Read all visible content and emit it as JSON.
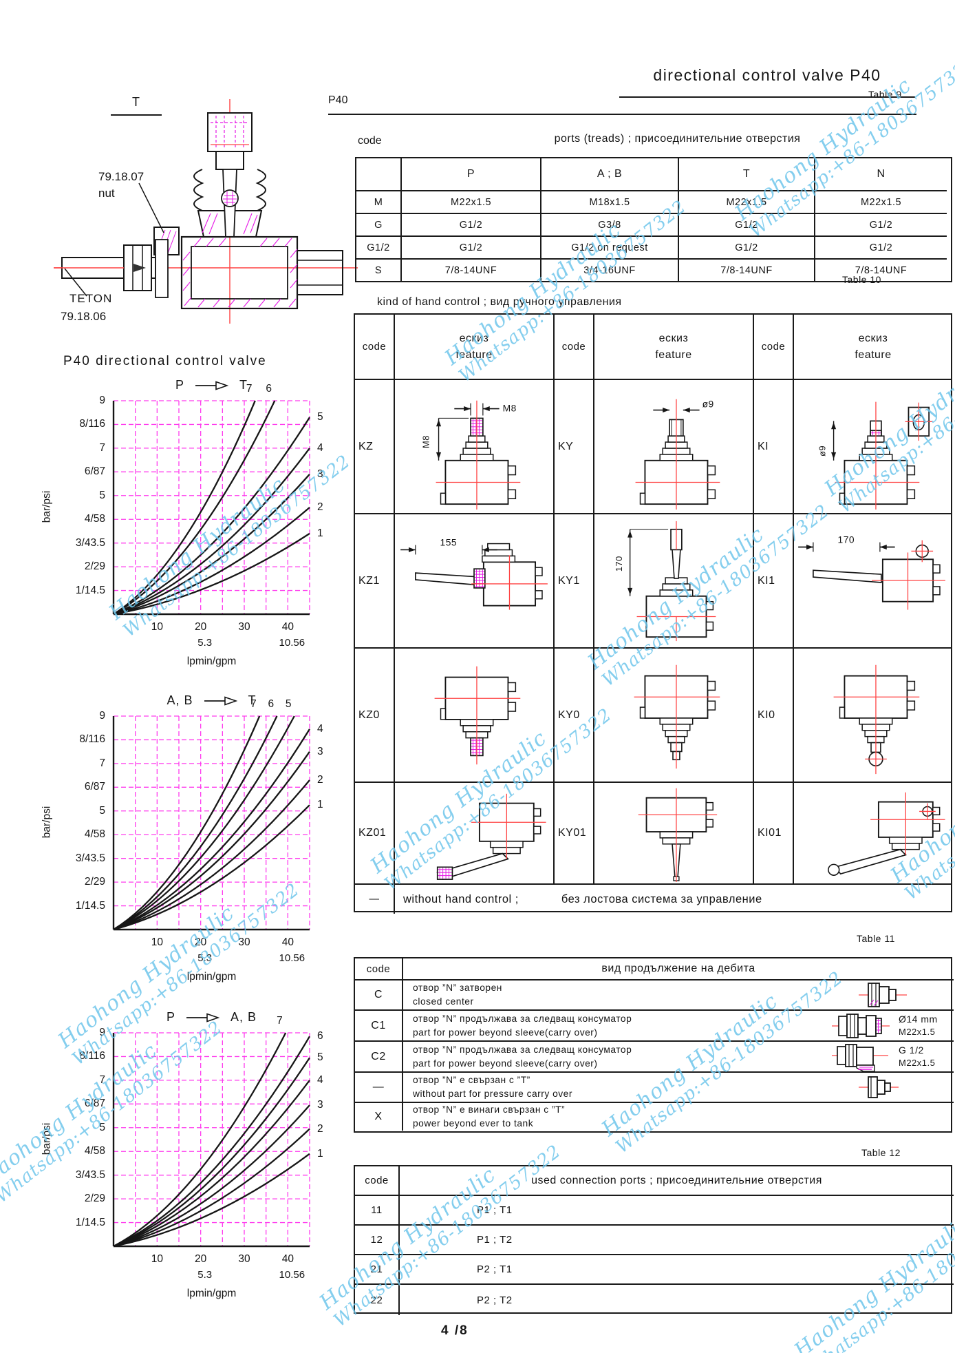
{
  "page": {
    "title": "directional control valve P40",
    "model": "P40",
    "number": "4 /8"
  },
  "watermark": {
    "line1": "Haohong Hydraulic",
    "line2": "Whatsapp:+86-18036757322"
  },
  "drawing": {
    "t_label": "T",
    "part1_line1": "79.18.07",
    "part1_line2": "nut",
    "part2_line1": "TETON",
    "part2_line2": "79.18.06"
  },
  "table9": {
    "label": "Table 9",
    "code_header": "code",
    "title": "ports (treads) ;  присоединительние отверстия",
    "columns": [
      "P",
      "A ; B",
      "T",
      "N"
    ],
    "rows": [
      {
        "code": "M",
        "values": [
          "M22x1.5",
          "M18x1.5",
          "M22x1.5",
          "M22x1.5"
        ]
      },
      {
        "code": "G",
        "values": [
          "G1/2",
          "G3/8",
          "G1/2",
          "G1/2"
        ]
      },
      {
        "code": "G1/2",
        "values": [
          "G1/2",
          "G1/2 on request",
          "G1/2",
          "G1/2"
        ]
      },
      {
        "code": "S",
        "values": [
          "7/8-14UNF",
          "3/4-16UNF",
          "7/8-14UNF",
          "7/8-14UNF"
        ]
      }
    ]
  },
  "table10": {
    "label": "Table 10",
    "title": "kind of hand control ;  вид ручного  управления",
    "code_header": "code",
    "feature_header": [
      "ескиз",
      "feature"
    ],
    "rows": [
      [
        {
          "code": "KZ",
          "sketch": "kz",
          "dims": [
            "M8",
            "M8"
          ]
        },
        {
          "code": "KY",
          "sketch": "ky",
          "dims": [
            "ø9"
          ]
        },
        {
          "code": "KI",
          "sketch": "ki",
          "dims": [
            "ø9"
          ]
        }
      ],
      [
        {
          "code": "KZ1",
          "sketch": "kz1",
          "dims": [
            "155"
          ]
        },
        {
          "code": "KY1",
          "sketch": "ky1",
          "dims": [
            "170"
          ]
        },
        {
          "code": "KI1",
          "sketch": "ki1",
          "dims": [
            "170"
          ]
        }
      ],
      [
        {
          "code": "KZ0",
          "sketch": "kz0",
          "dims": []
        },
        {
          "code": "KY0",
          "sketch": "ky0",
          "dims": []
        },
        {
          "code": "KI0",
          "sketch": "ki0",
          "dims": []
        }
      ],
      [
        {
          "code": "KZ01",
          "sketch": "kz01",
          "dims": []
        },
        {
          "code": "KY01",
          "sketch": "ky01",
          "dims": []
        },
        {
          "code": "KI01",
          "sketch": "ki01",
          "dims": []
        }
      ]
    ],
    "footer": {
      "code": "—",
      "text_en": "without hand control ;",
      "text_bg": "без лостова система за управление"
    }
  },
  "chart_data": [
    {
      "type": "line",
      "title": "P40 directional control valve",
      "flow_from": "P",
      "flow_to": "T",
      "ylabel": "bar/psi",
      "xlabel": "lpmin/gpm",
      "y_ticks": [
        "9",
        "8/116",
        "7",
        "6/87",
        "5",
        "4/58",
        "3/43.5",
        "2/29",
        "1/14.5"
      ],
      "x_ticks": [
        "10",
        "20",
        "30",
        "40"
      ],
      "x_gpm": {
        "20": "5.3",
        "40": "10.56"
      },
      "x_range_lpmin": [
        0,
        45
      ],
      "y_range_bar": [
        0,
        9
      ],
      "grid": true,
      "series": [
        {
          "name": "7",
          "end_lpmin": 32.5,
          "end_bar": 9
        },
        {
          "name": "6",
          "end_lpmin": 37.0,
          "end_bar": 9
        },
        {
          "name": "5",
          "end_lpmin": 45,
          "end_bar": 8.3
        },
        {
          "name": "4",
          "end_lpmin": 45,
          "end_bar": 7.0
        },
        {
          "name": "3",
          "end_lpmin": 45,
          "end_bar": 5.9
        },
        {
          "name": "2",
          "end_lpmin": 45,
          "end_bar": 4.5
        },
        {
          "name": "1",
          "end_lpmin": 45,
          "end_bar": 3.4
        }
      ]
    },
    {
      "type": "line",
      "title": "",
      "flow_from": "A, B",
      "flow_to": "T",
      "ylabel": "bar/psi",
      "xlabel": "lpmin/gpm",
      "y_ticks": [
        "9",
        "8/116",
        "7",
        "6/87",
        "5",
        "4/58",
        "3/43.5",
        "2/29",
        "1/14.5"
      ],
      "x_ticks": [
        "10",
        "20",
        "30",
        "40"
      ],
      "x_gpm": {
        "20": "5.3",
        "40": "10.56"
      },
      "x_range_lpmin": [
        0,
        45
      ],
      "y_range_bar": [
        0,
        9
      ],
      "grid": true,
      "series": [
        {
          "name": "7",
          "end_lpmin": 33.5,
          "end_bar": 9
        },
        {
          "name": "6",
          "end_lpmin": 37.5,
          "end_bar": 9
        },
        {
          "name": "5",
          "end_lpmin": 41.5,
          "end_bar": 9
        },
        {
          "name": "4",
          "end_lpmin": 45,
          "end_bar": 8.45
        },
        {
          "name": "3",
          "end_lpmin": 45,
          "end_bar": 7.5
        },
        {
          "name": "2",
          "end_lpmin": 45,
          "end_bar": 6.3
        },
        {
          "name": "1",
          "end_lpmin": 45,
          "end_bar": 5.25
        }
      ]
    },
    {
      "type": "line",
      "title": "",
      "flow_from": "P",
      "flow_to": "A, B",
      "ylabel": "bar/psi",
      "xlabel": "lpmin/gpm",
      "y_ticks": [
        "9",
        "8/116",
        "7",
        "6/87",
        "5",
        "4/58",
        "3/43.5",
        "2/29",
        "1/14.5"
      ],
      "x_ticks": [
        "10",
        "20",
        "30",
        "40"
      ],
      "x_gpm": {
        "20": "5.3",
        "40": "10.56"
      },
      "x_range_lpmin": [
        0,
        45
      ],
      "y_range_bar": [
        0,
        9
      ],
      "grid": true,
      "series": [
        {
          "name": "7",
          "end_lpmin": 39.5,
          "end_bar": 9
        },
        {
          "name": "6",
          "end_lpmin": 45,
          "end_bar": 8.85
        },
        {
          "name": "5",
          "end_lpmin": 45,
          "end_bar": 7.95
        },
        {
          "name": "4",
          "end_lpmin": 45,
          "end_bar": 7.0
        },
        {
          "name": "3",
          "end_lpmin": 45,
          "end_bar": 5.95
        },
        {
          "name": "2",
          "end_lpmin": 45,
          "end_bar": 4.95
        },
        {
          "name": "1",
          "end_lpmin": 45,
          "end_bar": 3.9
        }
      ]
    }
  ],
  "table11": {
    "label": "Table 11",
    "code_header": "code",
    "title": "вид продължение на дебита",
    "rows": [
      {
        "code": "C",
        "line1": "отвор ”N” затворен",
        "line2": "closed center",
        "icon": "plug-closed",
        "note1": "",
        "note2": ""
      },
      {
        "code": "C1",
        "line1": "отвор ”N” продължава за следващ консуматор",
        "line2": "part for power beyond sleeve(carry over)",
        "icon": "plug-sleeve",
        "note1": "Ø14 mm",
        "note2": "M22x1.5"
      },
      {
        "code": "C2",
        "line1": "отвор ”N” продължава за следващ консуматор",
        "line2": "part for power beyond sleeve(carry over)",
        "icon": "plug-sleeve-g",
        "note1": "G 1/2",
        "note2": "M22x1.5"
      },
      {
        "code": "—",
        "line1": "отвор ”N” е  свързан с ”T”",
        "line2": "without part for pressure carry over",
        "icon": "plug-short",
        "note1": "",
        "note2": ""
      },
      {
        "code": "X",
        "line1": "отвор ”N” е  винаги свързан с ”T”",
        "line2": "power beyond ever to tank",
        "icon": "",
        "note1": "",
        "note2": ""
      }
    ]
  },
  "table12": {
    "label": "Table 12",
    "code_header": "code",
    "title": "used connection ports ;  присоединительние отверстия",
    "rows": [
      {
        "code": "11",
        "value": "P1 ; T1"
      },
      {
        "code": "12",
        "value": "P1 ; T2"
      },
      {
        "code": "21",
        "value": "P2 ; T1"
      },
      {
        "code": "22",
        "value": "P2 ; T2"
      }
    ]
  }
}
